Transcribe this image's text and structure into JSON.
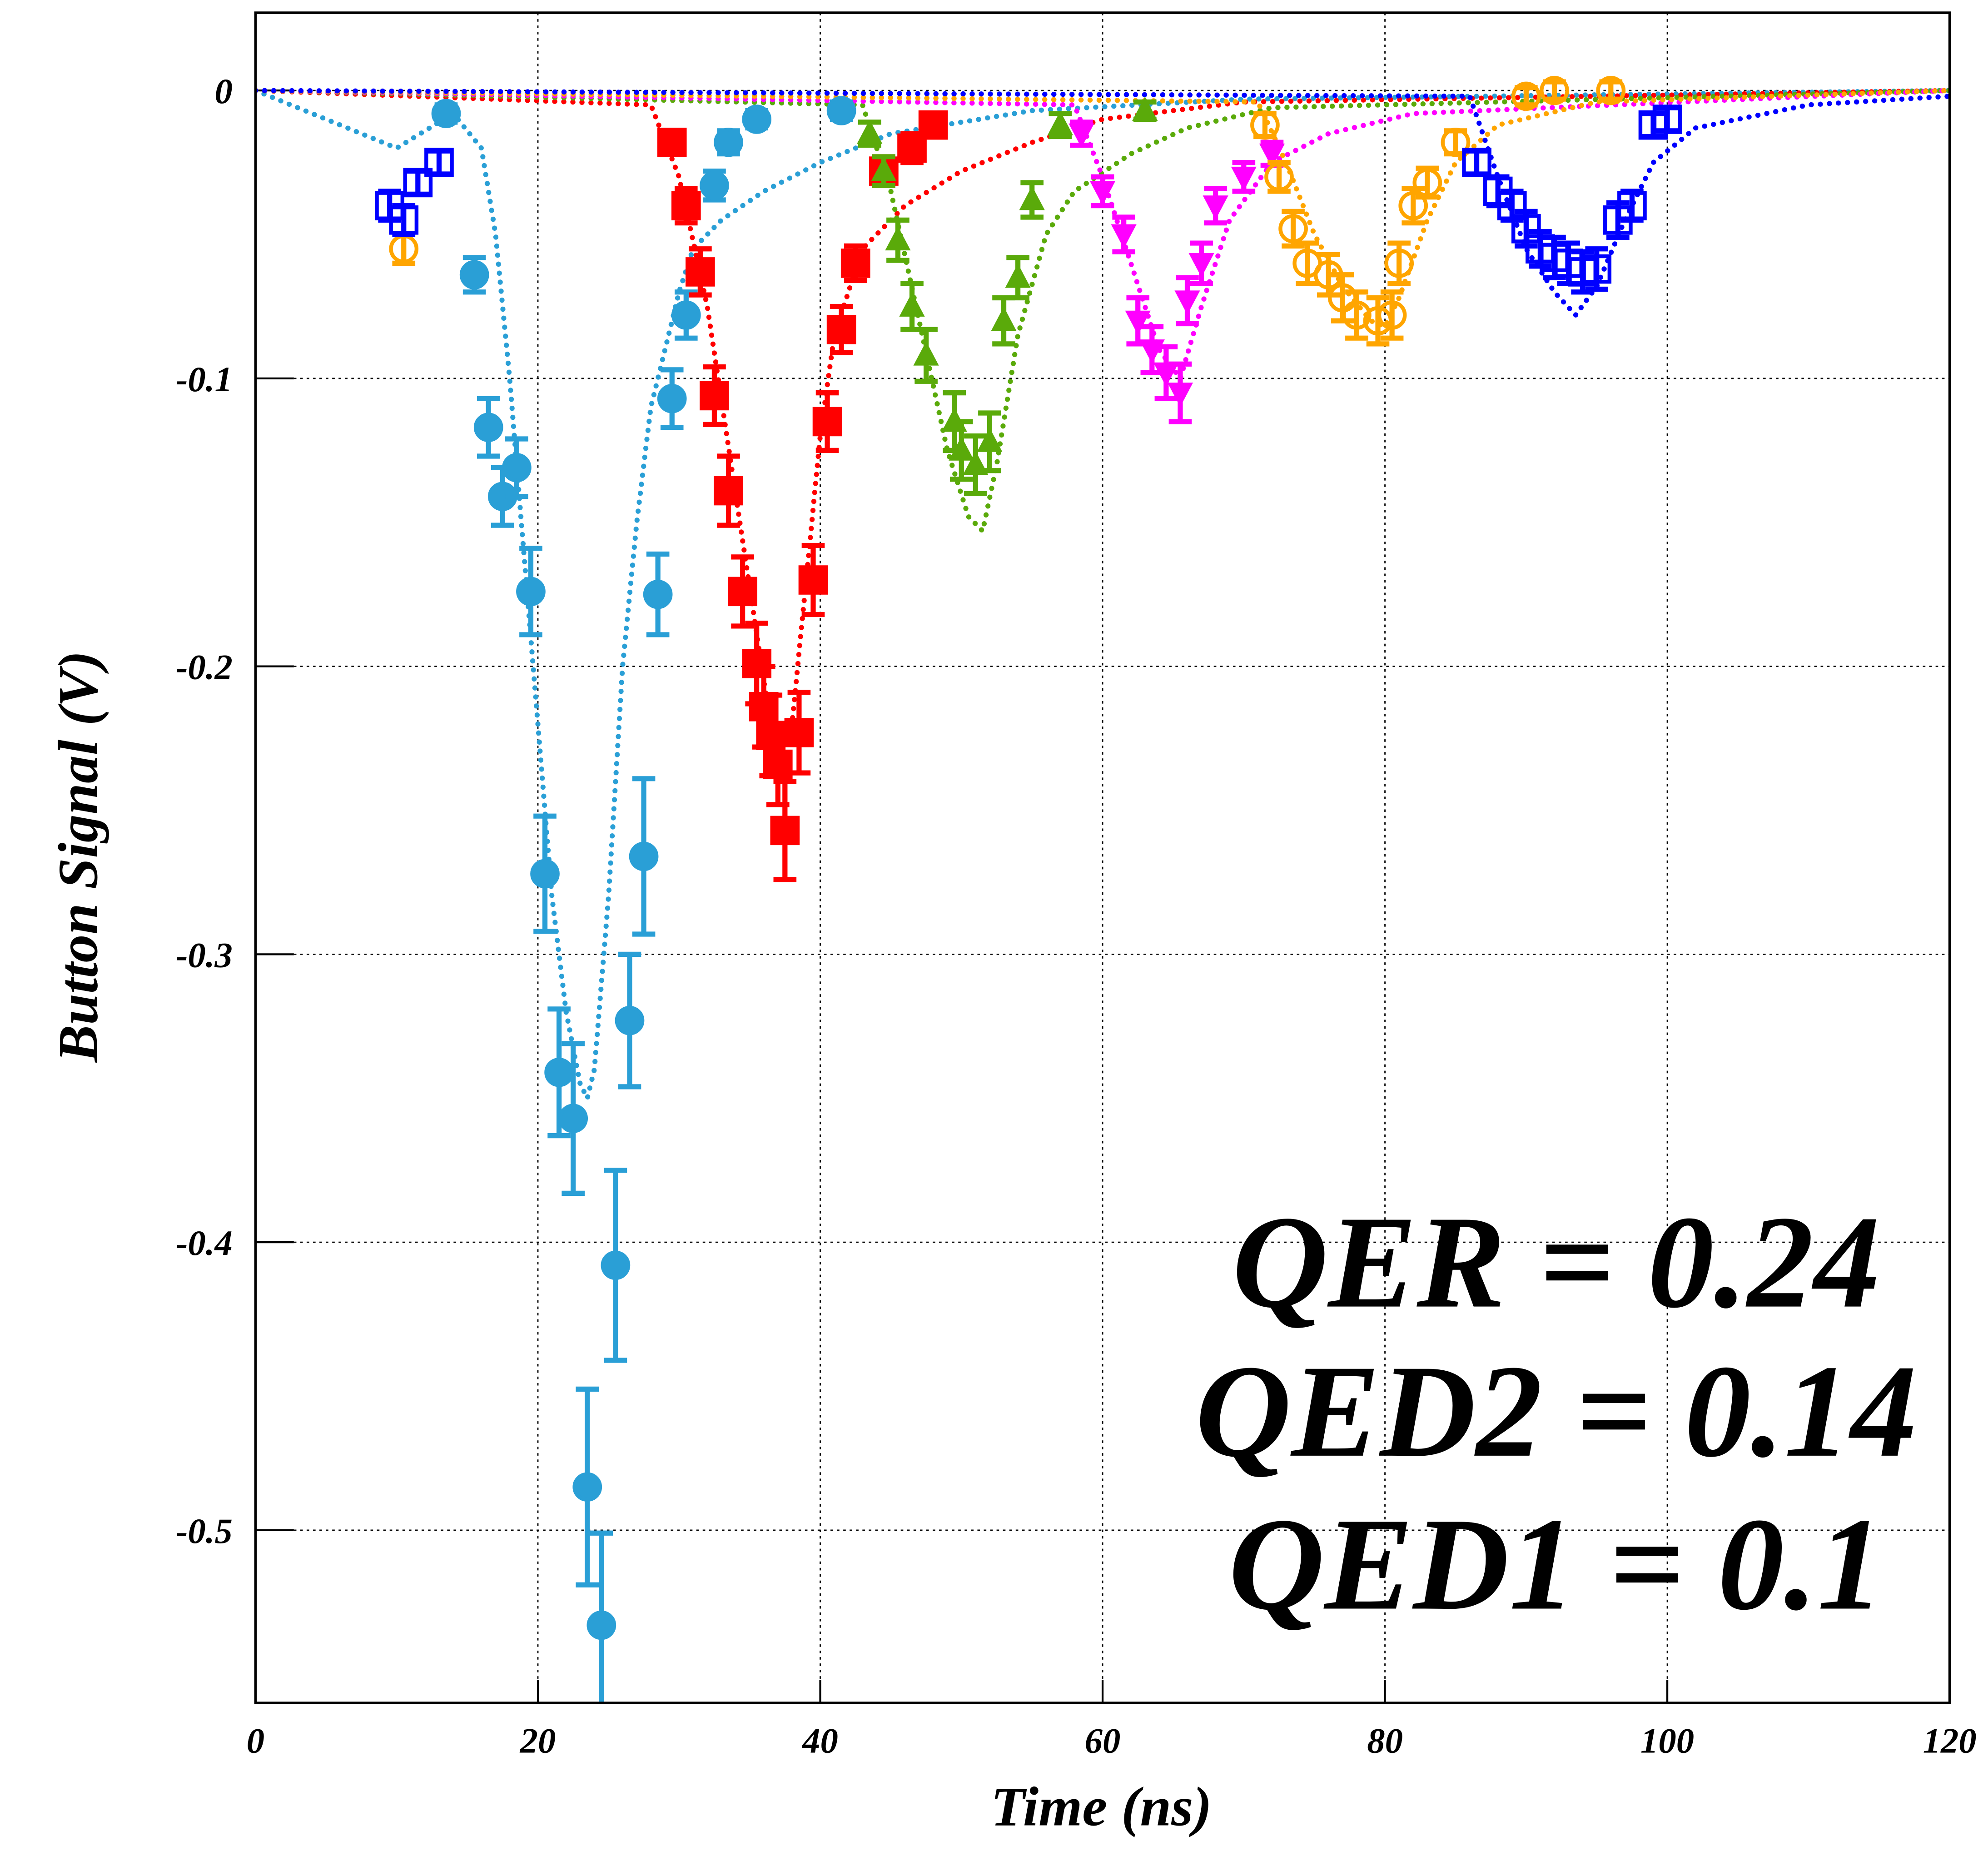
{
  "chart_data": {
    "type": "scatter",
    "xlabel": "Time (ns)",
    "ylabel": "Button Signal (V)",
    "xlim": [
      0,
      120
    ],
    "ylim": [
      -0.56,
      0.027
    ],
    "xticks": [
      0,
      20,
      40,
      60,
      80,
      100,
      120
    ],
    "yticks": [
      0,
      -0.1,
      -0.2,
      -0.3,
      -0.4,
      -0.5
    ],
    "grid": true,
    "annotations": [
      "QER = 0.24",
      "QED2 = 0.14",
      "QED1 = 0.1"
    ],
    "series": [
      {
        "color": "#2a9fd6",
        "marker": "circle",
        "x": [
          13.5,
          15.5,
          16.5,
          17.5,
          18.5,
          19.5,
          20.5,
          21.5,
          22.5,
          23.5,
          24.5,
          25.5,
          26.5,
          27.5,
          28.5,
          29.5,
          30.5,
          32.5,
          33.5,
          35.5,
          41.5
        ],
        "values": [
          -0.008,
          -0.064,
          -0.117,
          -0.141,
          -0.131,
          -0.174,
          -0.272,
          -0.341,
          -0.357,
          -0.485,
          -0.533,
          -0.408,
          -0.323,
          -0.266,
          -0.175,
          -0.107,
          -0.078,
          -0.033,
          -0.018,
          -0.01,
          -0.007
        ],
        "errors": [
          0.003,
          0.006,
          0.01,
          0.01,
          0.01,
          0.015,
          0.02,
          0.022,
          0.026,
          0.034,
          0.032,
          0.033,
          0.023,
          0.027,
          0.014,
          0.01,
          0.008,
          0.005,
          0.004,
          0.003,
          0.003
        ]
      },
      {
        "color": "#ff0000",
        "marker": "square",
        "x": [
          29.5,
          30.5,
          31.5,
          32.5,
          33.5,
          34.5,
          35.5,
          36,
          36.5,
          37,
          37.5,
          38.5,
          39.5,
          40.5,
          41.5,
          42.5,
          44.5,
          46.5,
          48
        ],
        "values": [
          -0.018,
          -0.04,
          -0.063,
          -0.106,
          -0.139,
          -0.174,
          -0.199,
          -0.214,
          -0.224,
          -0.234,
          -0.257,
          -0.223,
          -0.17,
          -0.115,
          -0.083,
          -0.06,
          -0.028,
          -0.02,
          -0.012
        ],
        "errors": [
          0.004,
          0.006,
          0.008,
          0.01,
          0.012,
          0.012,
          0.014,
          0.014,
          0.014,
          0.014,
          0.017,
          0.014,
          0.012,
          0.01,
          0.008,
          0.006,
          0.005,
          0.005,
          0.004
        ]
      },
      {
        "color": "#5aaa0a",
        "marker": "triangle-up",
        "x": [
          43.5,
          44.5,
          45.5,
          46.5,
          47.5,
          49.5,
          50,
          51,
          52,
          53,
          54,
          55,
          57,
          63
        ],
        "values": [
          -0.015,
          -0.028,
          -0.052,
          -0.075,
          -0.092,
          -0.115,
          -0.125,
          -0.13,
          -0.122,
          -0.08,
          -0.065,
          -0.038,
          -0.012,
          -0.007
        ],
        "errors": [
          0.004,
          0.005,
          0.007,
          0.008,
          0.009,
          0.01,
          0.01,
          0.01,
          0.01,
          0.008,
          0.007,
          0.006,
          0.004,
          0.003
        ]
      },
      {
        "color": "#ff00ff",
        "marker": "triangle-down",
        "x": [
          58.5,
          60,
          61.5,
          62.5,
          63.5,
          64.5,
          65.5,
          66,
          67,
          68,
          70,
          72
        ],
        "values": [
          -0.015,
          -0.035,
          -0.05,
          -0.08,
          -0.09,
          -0.098,
          -0.105,
          -0.073,
          -0.06,
          -0.04,
          -0.03,
          -0.022
        ],
        "errors": [
          0.004,
          0.005,
          0.006,
          0.008,
          0.008,
          0.009,
          0.01,
          0.008,
          0.007,
          0.006,
          0.005,
          0.004
        ]
      },
      {
        "color": "#ffa500",
        "marker": "open-circle",
        "x": [
          10.5,
          71.5,
          72.5,
          73.5,
          74.5,
          76,
          77,
          78,
          79.5,
          80.5,
          81,
          82,
          83,
          85,
          90,
          92,
          96
        ],
        "values": [
          -0.055,
          -0.012,
          -0.03,
          -0.048,
          -0.06,
          -0.064,
          -0.072,
          -0.078,
          -0.08,
          -0.078,
          -0.06,
          -0.04,
          -0.032,
          -0.018,
          -0.002,
          0,
          0
        ],
        "errors": [
          0.005,
          0.004,
          0.005,
          0.006,
          0.007,
          0.007,
          0.008,
          0.008,
          0.008,
          0.008,
          0.007,
          0.006,
          0.005,
          0.004,
          0.003,
          0.003,
          0.003
        ]
      },
      {
        "color": "#0000ff",
        "marker": "open-square",
        "x": [
          9.5,
          10.5,
          11.5,
          13,
          86.5,
          88,
          89,
          90,
          91,
          92,
          93,
          94,
          95,
          96.5,
          97.5,
          99,
          100
        ],
        "values": [
          -0.04,
          -0.045,
          -0.032,
          -0.025,
          -0.025,
          -0.035,
          -0.04,
          -0.048,
          -0.055,
          -0.058,
          -0.06,
          -0.063,
          -0.062,
          -0.045,
          -0.04,
          -0.012,
          -0.01
        ],
        "errors": [
          0.005,
          0.005,
          0.004,
          0.004,
          0.004,
          0.005,
          0.005,
          0.006,
          0.006,
          0.007,
          0.007,
          0.007,
          0.007,
          0.006,
          0.005,
          0.004,
          0.004
        ]
      }
    ],
    "fits": [
      {
        "color": "#2a9fd6",
        "x": [
          0,
          5,
          10,
          14,
          16,
          17,
          18,
          19,
          20,
          21,
          22,
          23,
          23.5,
          24,
          25,
          26,
          27,
          28,
          29,
          30,
          31,
          33,
          36,
          40,
          45,
          55,
          70,
          120
        ],
        "values": [
          0,
          -0.01,
          -0.02,
          -0.008,
          -0.02,
          -0.05,
          -0.1,
          -0.16,
          -0.22,
          -0.28,
          -0.32,
          -0.345,
          -0.35,
          -0.34,
          -0.28,
          -0.2,
          -0.15,
          -0.11,
          -0.09,
          -0.07,
          -0.055,
          -0.045,
          -0.035,
          -0.025,
          -0.015,
          -0.007,
          -0.003,
          0
        ]
      },
      {
        "color": "#ff0000",
        "x": [
          0,
          28,
          30,
          32,
          34,
          36,
          37,
          38,
          39,
          40,
          41,
          43,
          46,
          50,
          55,
          60,
          70,
          120
        ],
        "values": [
          0,
          -0.005,
          -0.03,
          -0.075,
          -0.14,
          -0.205,
          -0.235,
          -0.22,
          -0.17,
          -0.12,
          -0.085,
          -0.055,
          -0.04,
          -0.028,
          -0.018,
          -0.01,
          -0.004,
          0
        ]
      },
      {
        "color": "#5aaa0a",
        "x": [
          0,
          43,
          45,
          47,
          49,
          50.5,
          51.5,
          52.5,
          54,
          56,
          58,
          62,
          66,
          72,
          120
        ],
        "values": [
          0,
          -0.005,
          -0.035,
          -0.08,
          -0.125,
          -0.148,
          -0.153,
          -0.13,
          -0.085,
          -0.05,
          -0.035,
          -0.022,
          -0.013,
          -0.006,
          0
        ]
      },
      {
        "color": "#ff00ff",
        "x": [
          0,
          58,
          60,
          62,
          64,
          65.5,
          67,
          69,
          72,
          76,
          82,
          120
        ],
        "values": [
          0,
          -0.005,
          -0.03,
          -0.06,
          -0.09,
          -0.1,
          -0.075,
          -0.045,
          -0.025,
          -0.015,
          -0.008,
          0
        ]
      },
      {
        "color": "#ffa500",
        "x": [
          0,
          71,
          73,
          75,
          77,
          79,
          80,
          81,
          83,
          85,
          88,
          95,
          120
        ],
        "values": [
          0,
          -0.004,
          -0.025,
          -0.05,
          -0.068,
          -0.08,
          -0.082,
          -0.072,
          -0.045,
          -0.025,
          -0.012,
          -0.004,
          0
        ]
      },
      {
        "color": "#0000ff",
        "x": [
          0,
          86,
          88,
          90,
          92,
          93.5,
          95,
          97,
          99,
          102,
          110,
          120
        ],
        "values": [
          0,
          -0.002,
          -0.03,
          -0.055,
          -0.07,
          -0.078,
          -0.068,
          -0.045,
          -0.025,
          -0.013,
          -0.005,
          -0.002
        ]
      }
    ]
  }
}
